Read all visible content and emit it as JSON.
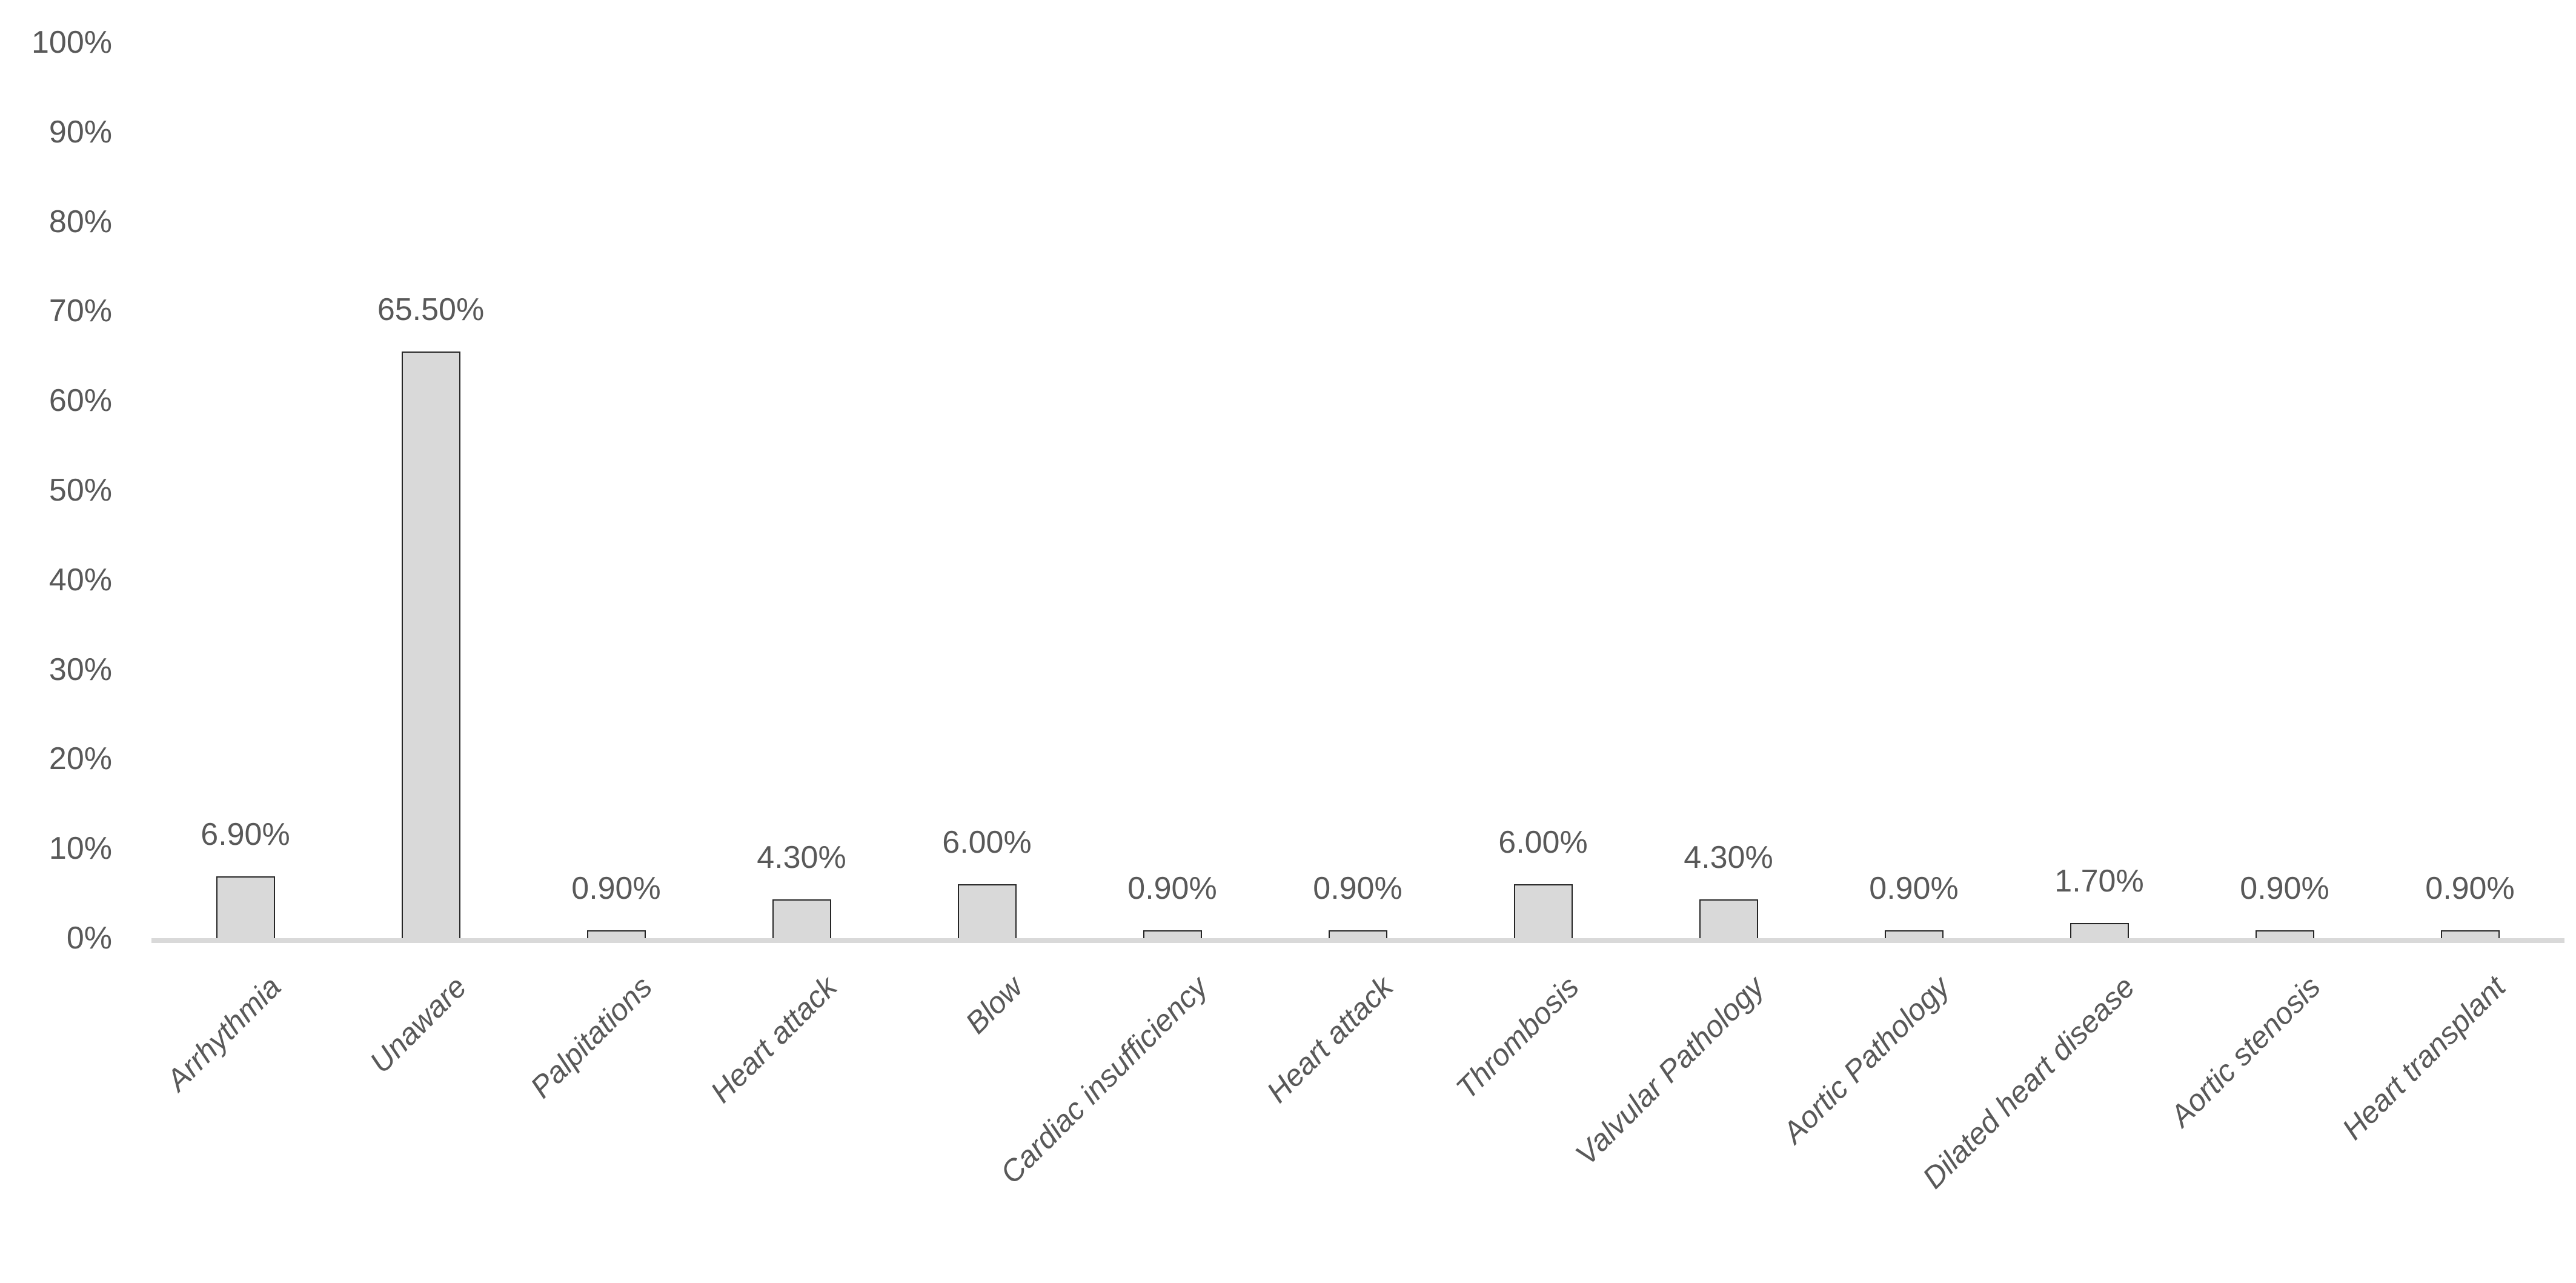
{
  "chart_data": {
    "type": "bar",
    "title": "",
    "xlabel": "",
    "ylabel": "",
    "categories": [
      "Arrhythmia",
      "Unaware",
      "Palpitations",
      "Heart attack",
      "Blow",
      "Cardiac insufficiency",
      "Heart attack",
      "Thrombosis",
      "Valvular Pathology",
      "Aortic Pathology",
      "Dilated heart disease",
      "Aortic stenosis",
      "Heart transplant"
    ],
    "values": [
      6.9,
      65.5,
      0.9,
      4.3,
      6.0,
      0.9,
      0.9,
      6.0,
      4.3,
      0.9,
      1.7,
      0.9,
      0.9
    ],
    "value_labels": [
      "6.90%",
      "65.50%",
      "0.90%",
      "4.30%",
      "6.00%",
      "0.90%",
      "0.90%",
      "6.00%",
      "4.30%",
      "0.90%",
      "1.70%",
      "0.90%",
      "0.90%"
    ],
    "y_tick_labels": [
      "0%",
      "10%",
      "20%",
      "30%",
      "40%",
      "50%",
      "60%",
      "70%",
      "80%",
      "90%",
      "100%"
    ],
    "ylim": [
      0,
      100
    ],
    "grid": false,
    "legend": null,
    "colors": {
      "bar_fill": "#d9d9d9",
      "bar_border": "#262626",
      "axis_line": "#d9d9d9",
      "text": "#595959",
      "background": "#ffffff"
    }
  }
}
